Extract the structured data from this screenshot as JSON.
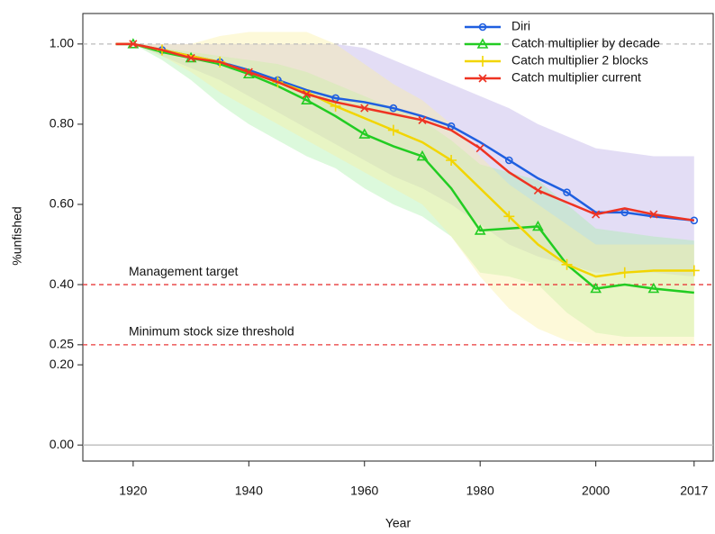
{
  "chart_data": {
    "type": "line",
    "x_label": "Year",
    "y_label": "%unfished",
    "x": [
      1917,
      1920,
      1925,
      1930,
      1935,
      1940,
      1945,
      1950,
      1955,
      1960,
      1965,
      1970,
      1975,
      1980,
      1985,
      1990,
      1995,
      2000,
      2005,
      2010,
      2017
    ],
    "series": [
      {
        "name": "Diri",
        "color": "#1f5fe0",
        "marker": "circle",
        "values": [
          1.0,
          1.0,
          0.985,
          0.97,
          0.955,
          0.935,
          0.91,
          0.885,
          0.865,
          0.855,
          0.84,
          0.82,
          0.795,
          0.755,
          0.71,
          0.665,
          0.63,
          0.58,
          0.58,
          0.57,
          0.56
        ],
        "upper": [
          1.0,
          1.0,
          1.0,
          1.0,
          1.0,
          1.0,
          1.0,
          1.0,
          1.0,
          0.99,
          0.96,
          0.93,
          0.9,
          0.87,
          0.84,
          0.8,
          0.77,
          0.74,
          0.73,
          0.72,
          0.72
        ],
        "lower": [
          1.0,
          1.0,
          0.97,
          0.94,
          0.91,
          0.87,
          0.83,
          0.79,
          0.75,
          0.71,
          0.67,
          0.64,
          0.6,
          0.55,
          0.5,
          0.47,
          0.45,
          0.43,
          0.43,
          0.43,
          0.42
        ],
        "band_color": "#b9a9e6"
      },
      {
        "name": "Catch multiplier by decade",
        "color": "#22cc22",
        "marker": "triangle",
        "values": [
          1.0,
          1.0,
          0.98,
          0.965,
          0.95,
          0.925,
          0.895,
          0.86,
          0.82,
          0.775,
          0.745,
          0.72,
          0.64,
          0.535,
          0.54,
          0.545,
          0.45,
          0.39,
          0.4,
          0.39,
          0.38
        ],
        "upper": [
          1.0,
          1.0,
          0.99,
          0.98,
          0.97,
          0.96,
          0.95,
          0.93,
          0.9,
          0.87,
          0.84,
          0.81,
          0.76,
          0.7,
          0.68,
          0.66,
          0.6,
          0.54,
          0.53,
          0.52,
          0.51
        ],
        "lower": [
          1.0,
          1.0,
          0.96,
          0.91,
          0.85,
          0.8,
          0.76,
          0.72,
          0.69,
          0.64,
          0.6,
          0.57,
          0.52,
          0.43,
          0.42,
          0.4,
          0.33,
          0.28,
          0.27,
          0.27,
          0.27
        ],
        "band_color": "#a8f0a8"
      },
      {
        "name": "Catch multiplier 2 blocks",
        "color": "#f2d500",
        "marker": "plus",
        "values": [
          1.0,
          1.0,
          0.985,
          0.97,
          0.955,
          0.93,
          0.905,
          0.88,
          0.845,
          0.815,
          0.785,
          0.755,
          0.71,
          0.64,
          0.57,
          0.5,
          0.45,
          0.42,
          0.43,
          0.435,
          0.435
        ],
        "upper": [
          1.0,
          1.0,
          1.0,
          1.0,
          1.02,
          1.03,
          1.03,
          1.03,
          1.0,
          0.95,
          0.9,
          0.86,
          0.8,
          0.72,
          0.65,
          0.6,
          0.55,
          0.5,
          0.5,
          0.5,
          0.5
        ],
        "lower": [
          1.0,
          1.0,
          0.97,
          0.93,
          0.88,
          0.84,
          0.8,
          0.76,
          0.72,
          0.68,
          0.64,
          0.6,
          0.52,
          0.42,
          0.34,
          0.29,
          0.26,
          0.25,
          0.25,
          0.25,
          0.25
        ],
        "band_color": "#fbf1a0"
      },
      {
        "name": "Catch multiplier current",
        "color": "#ee3322",
        "marker": "cross",
        "values": [
          1.0,
          1.0,
          0.985,
          0.965,
          0.955,
          0.93,
          0.905,
          0.875,
          0.855,
          0.84,
          0.825,
          0.81,
          0.785,
          0.74,
          0.68,
          0.635,
          0.605,
          0.575,
          0.59,
          0.575,
          0.56
        ]
      }
    ],
    "hlines": [
      {
        "value": 1.0,
        "color": "#bbbbbb",
        "dash": true
      },
      {
        "value": 0.4,
        "color": "#e83a3a",
        "dash": true,
        "label": "Management target"
      },
      {
        "value": 0.25,
        "color": "#e83a3a",
        "dash": true,
        "label": "Minimum stock size threshold"
      },
      {
        "value": 0.0,
        "color": "#bbbbbb",
        "dash": false
      }
    ],
    "xlim": [
      1911.3,
      2020.3
    ],
    "ylim": [
      -0.04,
      1.076
    ],
    "xticks": [
      1920,
      1940,
      1960,
      1980,
      2000,
      2017
    ],
    "yticks": [
      {
        "value": 0,
        "label": "0.00"
      },
      {
        "value": 0.2,
        "label": "0.20"
      },
      {
        "value": 0.25,
        "label": "0.25"
      },
      {
        "value": 0.4,
        "label": "0.40"
      },
      {
        "value": 0.6,
        "label": "0.60"
      },
      {
        "value": 0.8,
        "label": "0.80"
      },
      {
        "value": 1,
        "label": "1.00"
      }
    ],
    "legend": "top-right"
  }
}
